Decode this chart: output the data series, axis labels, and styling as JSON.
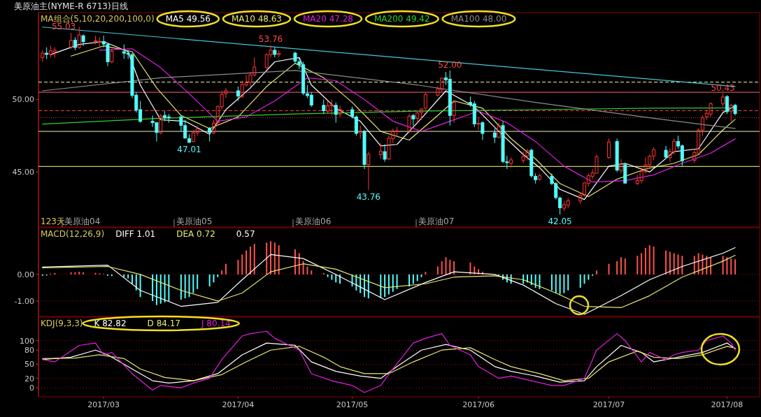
{
  "chart_data": [
    {
      "type": "candlestick",
      "title": "美原油主(NYME-R 6713)日线",
      "subtitle": "MA组合(5,10,20,200,100,0)",
      "legend": "top left",
      "tick_labels": "y",
      "xlim": [
        "2017-02-13",
        "2017-08-09"
      ],
      "ylim": [
        41.2,
        56
      ],
      "yticks": [
        {
          "value": 45,
          "label": "45.00"
        },
        {
          "value": 50,
          "label": "50.00"
        }
      ],
      "x": [
        "2017-02-14",
        "2017-02-15",
        "2017-02-16",
        "2017-02-17",
        "2017-02-21",
        "2017-02-22",
        "2017-02-23",
        "2017-02-24",
        "2017-02-27",
        "2017-02-28",
        "2017-03-01",
        "2017-03-02",
        "2017-03-03",
        "2017-03-06",
        "2017-03-07",
        "2017-03-08",
        "2017-03-09",
        "2017-03-10",
        "2017-03-13",
        "2017-03-14",
        "2017-03-15",
        "2017-03-16",
        "2017-03-17",
        "2017-03-20",
        "2017-03-21",
        "2017-03-22",
        "2017-03-23",
        "2017-03-24",
        "2017-03-27",
        "2017-03-28",
        "2017-03-29",
        "2017-03-30",
        "2017-03-31",
        "2017-04-03",
        "2017-04-04",
        "2017-04-05",
        "2017-04-06",
        "2017-04-07",
        "2017-04-10",
        "2017-04-11",
        "2017-04-12",
        "2017-04-13",
        "2017-04-17",
        "2017-04-18",
        "2017-04-19",
        "2017-04-20",
        "2017-04-21",
        "2017-04-24",
        "2017-04-25",
        "2017-04-26",
        "2017-04-27",
        "2017-04-28",
        "2017-05-01",
        "2017-05-02",
        "2017-05-03",
        "2017-05-04",
        "2017-05-05",
        "2017-05-08",
        "2017-05-09",
        "2017-05-10",
        "2017-05-11",
        "2017-05-12",
        "2017-05-15",
        "2017-05-16",
        "2017-05-17",
        "2017-05-18",
        "2017-05-19",
        "2017-05-22",
        "2017-05-23",
        "2017-05-24",
        "2017-05-25",
        "2017-05-26",
        "2017-05-30",
        "2017-05-31",
        "2017-06-01",
        "2017-06-02",
        "2017-06-05",
        "2017-06-06",
        "2017-06-07",
        "2017-06-08",
        "2017-06-09",
        "2017-06-12",
        "2017-06-13",
        "2017-06-14",
        "2017-06-15",
        "2017-06-16",
        "2017-06-19",
        "2017-06-20",
        "2017-06-21",
        "2017-06-22",
        "2017-06-23",
        "2017-06-26",
        "2017-06-27",
        "2017-06-28",
        "2017-06-29",
        "2017-06-30",
        "2017-07-03",
        "2017-07-05",
        "2017-07-06",
        "2017-07-07",
        "2017-07-10",
        "2017-07-11",
        "2017-07-12",
        "2017-07-13",
        "2017-07-14",
        "2017-07-17",
        "2017-07-18",
        "2017-07-19",
        "2017-07-20",
        "2017-07-21",
        "2017-07-24",
        "2017-07-25",
        "2017-07-26",
        "2017-07-27",
        "2017-07-28",
        "2017-07-31",
        "2017-08-01",
        "2017-08-02",
        "2017-08-03"
      ],
      "ohlc": [
        [
          52.9,
          53.4,
          52.6,
          53.2
        ],
        [
          53.2,
          53.6,
          52.8,
          53.11
        ],
        [
          53.1,
          53.7,
          52.9,
          53.36
        ],
        [
          53.3,
          53.6,
          52.9,
          53.4
        ],
        [
          53.6,
          54.6,
          53.5,
          54.06
        ],
        [
          54.1,
          54.3,
          53.4,
          53.59
        ],
        [
          53.6,
          55.03,
          53.5,
          54.45
        ],
        [
          54.4,
          54.5,
          53.7,
          53.99
        ],
        [
          54.0,
          54.4,
          53.8,
          54.05
        ],
        [
          54.0,
          54.3,
          53.6,
          54.01
        ],
        [
          54.0,
          54.4,
          53.6,
          53.83
        ],
        [
          53.8,
          53.9,
          52.3,
          52.61
        ],
        [
          52.6,
          53.5,
          52.5,
          53.33
        ],
        [
          53.3,
          53.8,
          52.8,
          53.2
        ],
        [
          53.2,
          53.4,
          52.8,
          53.14
        ],
        [
          53.1,
          53.2,
          50.1,
          50.28
        ],
        [
          50.3,
          50.5,
          49.1,
          49.28
        ],
        [
          49.3,
          49.9,
          48.4,
          48.49
        ],
        [
          48.5,
          48.9,
          48.1,
          48.4
        ],
        [
          48.4,
          48.4,
          47.1,
          47.72
        ],
        [
          47.7,
          49.0,
          47.6,
          48.86
        ],
        [
          48.9,
          49.2,
          48.5,
          48.75
        ],
        [
          48.8,
          49.0,
          48.4,
          48.78
        ],
        [
          48.8,
          48.9,
          47.8,
          48.22
        ],
        [
          48.2,
          48.6,
          47.3,
          47.34
        ],
        [
          47.3,
          47.6,
          47.01,
          47.04
        ],
        [
          47.1,
          47.9,
          47.05,
          47.7
        ],
        [
          47.7,
          48.2,
          47.5,
          47.97
        ],
        [
          48.0,
          48.1,
          47.1,
          47.73
        ],
        [
          47.7,
          48.6,
          47.6,
          48.37
        ],
        [
          48.4,
          49.6,
          48.2,
          49.51
        ],
        [
          49.5,
          50.6,
          49.3,
          50.35
        ],
        [
          50.4,
          50.8,
          50.1,
          50.6
        ],
        [
          50.6,
          50.9,
          49.9,
          50.24
        ],
        [
          50.2,
          51.3,
          50.1,
          51.03
        ],
        [
          51.0,
          51.7,
          50.9,
          51.15
        ],
        [
          51.2,
          51.9,
          50.9,
          51.7
        ],
        [
          51.7,
          52.9,
          51.6,
          52.24
        ],
        [
          52.2,
          53.2,
          52.1,
          53.08
        ],
        [
          53.1,
          53.76,
          52.9,
          53.4
        ],
        [
          53.4,
          53.6,
          52.9,
          53.11
        ],
        [
          53.1,
          53.4,
          52.9,
          53.18
        ],
        [
          53.2,
          53.3,
          52.5,
          52.65
        ],
        [
          52.6,
          52.9,
          52.1,
          52.41
        ],
        [
          52.4,
          52.6,
          50.3,
          50.44
        ],
        [
          50.4,
          51.0,
          50.1,
          50.27
        ],
        [
          50.3,
          50.5,
          49.5,
          49.62
        ],
        [
          49.6,
          50.0,
          49.0,
          49.23
        ],
        [
          49.2,
          49.9,
          49.0,
          49.56
        ],
        [
          49.6,
          50.0,
          48.9,
          49.62
        ],
        [
          49.6,
          49.8,
          48.4,
          48.97
        ],
        [
          49.0,
          49.6,
          48.8,
          49.33
        ],
        [
          49.3,
          49.5,
          48.7,
          48.84
        ],
        [
          48.8,
          48.9,
          47.5,
          47.66
        ],
        [
          47.7,
          48.2,
          47.3,
          47.82
        ],
        [
          47.8,
          47.9,
          45.2,
          45.52
        ],
        [
          45.5,
          46.4,
          43.76,
          46.22
        ],
        [
          46.2,
          47.0,
          45.9,
          46.43
        ],
        [
          46.4,
          46.9,
          45.7,
          45.88
        ],
        [
          45.9,
          47.5,
          45.8,
          47.33
        ],
        [
          47.3,
          48.0,
          47.0,
          47.83
        ],
        [
          47.8,
          48.1,
          47.5,
          47.84
        ],
        [
          47.8,
          49.0,
          47.7,
          48.85
        ],
        [
          48.9,
          49.0,
          48.2,
          48.66
        ],
        [
          48.7,
          49.2,
          48.4,
          49.07
        ],
        [
          49.1,
          49.4,
          48.6,
          49.35
        ],
        [
          49.4,
          50.5,
          49.3,
          50.33
        ],
        [
          50.3,
          50.9,
          50.2,
          50.73
        ],
        [
          50.7,
          51.5,
          50.5,
          51.47
        ],
        [
          51.5,
          51.9,
          51.0,
          51.36
        ],
        [
          51.4,
          52.0,
          48.2,
          48.9
        ],
        [
          48.9,
          49.9,
          48.4,
          49.8
        ],
        [
          49.8,
          50.2,
          49.5,
          49.66
        ],
        [
          49.7,
          49.9,
          48.1,
          48.32
        ],
        [
          48.3,
          48.8,
          47.9,
          48.36
        ],
        [
          48.4,
          48.5,
          47.2,
          47.66
        ],
        [
          47.7,
          48.0,
          47.0,
          47.4
        ],
        [
          47.4,
          48.4,
          47.3,
          48.19
        ],
        [
          48.2,
          48.5,
          45.6,
          45.72
        ],
        [
          45.7,
          46.1,
          45.2,
          45.64
        ],
        [
          45.6,
          46.0,
          45.3,
          45.83
        ],
        [
          45.8,
          46.4,
          45.6,
          46.08
        ],
        [
          46.1,
          46.6,
          45.8,
          46.46
        ],
        [
          46.5,
          46.6,
          44.6,
          44.73
        ],
        [
          44.7,
          44.9,
          44.2,
          44.46
        ],
        [
          44.5,
          44.9,
          44.4,
          44.74
        ],
        [
          44.7,
          44.9,
          44.1,
          44.2
        ],
        [
          44.2,
          44.3,
          43.1,
          43.23
        ],
        [
          43.2,
          43.3,
          42.05,
          42.53
        ],
        [
          42.5,
          43.0,
          42.3,
          42.74
        ],
        [
          42.7,
          43.2,
          42.5,
          43.01
        ],
        [
          43.0,
          43.6,
          42.8,
          43.38
        ],
        [
          43.4,
          44.3,
          43.3,
          44.24
        ],
        [
          44.2,
          44.9,
          44.0,
          44.74
        ],
        [
          44.7,
          45.2,
          44.5,
          44.93
        ],
        [
          44.9,
          46.2,
          44.9,
          46.04
        ],
        [
          46.0,
          47.3,
          45.9,
          47.07
        ],
        [
          47.1,
          47.3,
          45.0,
          45.13
        ],
        [
          45.1,
          45.9,
          44.9,
          45.52
        ],
        [
          45.5,
          45.6,
          44.2,
          44.23
        ],
        [
          44.2,
          44.8,
          44.1,
          44.4
        ],
        [
          44.4,
          45.3,
          44.2,
          45.04
        ],
        [
          45.0,
          46.0,
          44.9,
          45.49
        ],
        [
          45.5,
          46.2,
          45.3,
          46.08
        ],
        [
          46.1,
          46.7,
          45.8,
          46.54
        ],
        [
          46.5,
          46.8,
          45.9,
          46.02
        ],
        [
          46.0,
          46.6,
          45.7,
          46.4
        ],
        [
          46.4,
          47.3,
          46.2,
          47.12
        ],
        [
          47.1,
          47.5,
          46.6,
          46.79
        ],
        [
          46.8,
          46.9,
          45.4,
          45.77
        ],
        [
          45.8,
          46.5,
          45.6,
          46.34
        ],
        [
          46.3,
          48.0,
          46.2,
          47.89
        ],
        [
          47.9,
          48.9,
          47.5,
          48.75
        ],
        [
          48.8,
          49.3,
          48.6,
          49.04
        ],
        [
          49.0,
          49.8,
          48.8,
          49.71
        ],
        [
          49.7,
          50.43,
          49.5,
          50.17
        ],
        [
          50.2,
          50.3,
          49.0,
          49.16
        ],
        [
          49.2,
          49.7,
          48.5,
          49.59
        ],
        [
          49.6,
          49.7,
          48.9,
          49.03
        ]
      ],
      "colors": [
        "#ff3232",
        "#54fcfc",
        "#ff3232",
        "#ff3232",
        "#ff3232",
        "#54fcfc",
        "#ff3232",
        "#54fcfc",
        "#ff3232",
        "#ff3232",
        "#54fcfc",
        "#54fcfc",
        "#ff3232",
        "#54fcfc",
        "#54fcfc",
        "#54fcfc",
        "#54fcfc",
        "#54fcfc",
        "#54fcfc",
        "#54fcfc",
        "#ff3232",
        "#54fcfc",
        "#54fcfc",
        "#54fcfc",
        "#54fcfc",
        "#54fcfc",
        "#ff3232",
        "#ff3232",
        "#54fcfc",
        "#ff3232",
        "#ff3232",
        "#ff3232",
        "#ff3232",
        "#54fcfc",
        "#ff3232",
        "#ff3232",
        "#ff3232",
        "#ff3232",
        "#ff3232",
        "#ff3232",
        "#54fcfc",
        "#ff3232",
        "#54fcfc",
        "#54fcfc",
        "#54fcfc",
        "#54fcfc",
        "#54fcfc",
        "#54fcfc",
        "#ff3232",
        "#ff3232",
        "#54fcfc",
        "#ff3232",
        "#54fcfc",
        "#54fcfc",
        "#ff3232",
        "#54fcfc",
        "#ff3232",
        "#ff3232",
        "#54fcfc",
        "#ff3232",
        "#ff3232",
        "#ff3232",
        "#ff3232",
        "#54fcfc",
        "#ff3232",
        "#ff3232",
        "#ff3232",
        "#ff3232",
        "#ff3232",
        "#54fcfc",
        "#54fcfc",
        "#ff3232",
        "#54fcfc",
        "#54fcfc",
        "#ff3232",
        "#54fcfc",
        "#54fcfc",
        "#ff3232",
        "#54fcfc",
        "#54fcfc",
        "#ff3232",
        "#ff3232",
        "#ff3232",
        "#54fcfc",
        "#54fcfc",
        "#ff3232",
        "#54fcfc",
        "#54fcfc",
        "#54fcfc",
        "#ff3232",
        "#ff3232",
        "#ff3232",
        "#ff3232",
        "#ff3232",
        "#ff3232",
        "#ff3232",
        "#ff3232",
        "#54fcfc",
        "#ff3232",
        "#54fcfc",
        "#ff3232",
        "#ff3232",
        "#ff3232",
        "#ff3232",
        "#ff3232",
        "#54fcfc",
        "#ff3232",
        "#ff3232",
        "#54fcfc",
        "#54fcfc",
        "#ff3232",
        "#ff3232",
        "#ff3232",
        "#ff3232",
        "#ff3232",
        "#ff3232",
        "#54fcfc",
        "#ff3232",
        "#54fcfc"
      ],
      "series": [
        {
          "type": "line",
          "name": "MA5 49.56",
          "color": "#ffffff",
          "x": [
            "2017-02-16",
            "2017-02-23",
            "2017-03-01",
            "2017-03-07",
            "2017-03-10",
            "2017-03-15",
            "2017-03-21",
            "2017-03-27",
            "2017-03-31",
            "2017-04-06",
            "2017-04-12",
            "2017-04-18",
            "2017-04-21",
            "2017-04-27",
            "2017-05-03",
            "2017-05-08",
            "2017-05-12",
            "2017-05-18",
            "2017-05-24",
            "2017-05-31",
            "2017-06-06",
            "2017-06-12",
            "2017-06-16",
            "2017-06-21",
            "2017-06-27",
            "2017-07-03",
            "2017-07-07",
            "2017-07-13",
            "2017-07-19",
            "2017-07-25",
            "2017-07-31",
            "2017-08-03"
          ],
          "values": [
            53.1,
            53.8,
            54.0,
            53.3,
            51.0,
            48.6,
            48.5,
            47.6,
            49.3,
            50.8,
            52.6,
            52.9,
            51.0,
            49.4,
            48.5,
            46.8,
            46.9,
            48.7,
            50.6,
            49.5,
            47.8,
            46.2,
            45.3,
            43.8,
            43.1,
            45.4,
            45.6,
            45.0,
            46.4,
            46.6,
            49.1,
            49.56
          ]
        },
        {
          "type": "line",
          "name": "MA10 48.63",
          "color": "#e8e870",
          "x": [
            "2017-02-21",
            "2017-03-01",
            "2017-03-08",
            "2017-03-14",
            "2017-03-20",
            "2017-03-27",
            "2017-04-03",
            "2017-04-10",
            "2017-04-17",
            "2017-04-24",
            "2017-05-01",
            "2017-05-08",
            "2017-05-15",
            "2017-05-22",
            "2017-05-26",
            "2017-06-02",
            "2017-06-09",
            "2017-06-15",
            "2017-06-21",
            "2017-06-28",
            "2017-07-05",
            "2017-07-12",
            "2017-07-19",
            "2017-07-25",
            "2017-07-31",
            "2017-08-03"
          ],
          "values": [
            53.0,
            53.7,
            53.3,
            50.8,
            48.9,
            48.0,
            48.8,
            50.9,
            52.5,
            51.5,
            49.8,
            47.8,
            47.2,
            48.9,
            49.9,
            49.4,
            47.3,
            45.9,
            44.2,
            43.3,
            44.5,
            45.2,
            45.6,
            46.2,
            47.9,
            48.63
          ]
        },
        {
          "type": "line",
          "name": "MA20 47.28",
          "color": "#e020e0",
          "x": [
            "2017-02-28",
            "2017-03-08",
            "2017-03-15",
            "2017-03-22",
            "2017-03-29",
            "2017-04-05",
            "2017-04-12",
            "2017-04-20",
            "2017-04-27",
            "2017-05-04",
            "2017-05-11",
            "2017-05-18",
            "2017-05-25",
            "2017-06-01",
            "2017-06-08",
            "2017-06-15",
            "2017-06-22",
            "2017-06-29",
            "2017-07-07",
            "2017-07-14",
            "2017-07-21",
            "2017-07-28",
            "2017-08-03"
          ],
          "values": [
            53.4,
            53.5,
            52.2,
            50.4,
            48.5,
            48.8,
            49.9,
            51.5,
            51.3,
            50.0,
            48.5,
            47.8,
            48.5,
            49.2,
            48.4,
            47.1,
            45.4,
            44.3,
            44.4,
            44.8,
            45.6,
            46.3,
            47.28
          ]
        },
        {
          "type": "line",
          "name": "MA200 49.42",
          "color": "#30d030",
          "x": [
            "2017-02-14",
            "2017-03-15",
            "2017-04-17",
            "2017-05-17",
            "2017-06-15",
            "2017-07-14",
            "2017-08-03"
          ],
          "values": [
            48.3,
            48.7,
            49.0,
            49.2,
            49.3,
            49.4,
            49.42
          ]
        },
        {
          "type": "line",
          "name": "MA100 48.00",
          "color": "#8c8c8c",
          "x": [
            "2017-02-14",
            "2017-03-15",
            "2017-04-17",
            "2017-05-17",
            "2017-06-15",
            "2017-07-14",
            "2017-08-03"
          ],
          "values": [
            50.6,
            51.5,
            52.0,
            51.0,
            49.8,
            48.7,
            48.0
          ]
        },
        {
          "type": "line",
          "color": "#40c8d8",
          "x": [
            "2017-02-14",
            "2017-08-03"
          ],
          "values": [
            55.0,
            50.9
          ]
        }
      ],
      "ref_lines": [
        {
          "axis": "y",
          "value": 51.2,
          "color": "#f0f0a0",
          "line_style": "dashed"
        },
        {
          "axis": "y",
          "value": 50.5,
          "color": "#ff6080",
          "line_style": "solid"
        },
        {
          "axis": "y",
          "value": 49.23,
          "color": "#ff4040",
          "line_style": "dashed"
        },
        {
          "axis": "y",
          "value": 48.75,
          "color": "#c03030",
          "line_style": "dotted"
        },
        {
          "axis": "y",
          "value": 47.8,
          "color": "#f0f0b0",
          "line_style": "solid"
        },
        {
          "axis": "y",
          "value": 45.38,
          "color": "#ffff80",
          "line_style": "solid"
        }
      ],
      "annotations": [
        "123天",
        {
          "text": "55.03",
          "x": "2017-02-23",
          "y": 55.03
        },
        {
          "text": "53.76",
          "x": "2017-04-11",
          "y": 53.76
        },
        {
          "text": "47.01",
          "x": "2017-03-22",
          "y": 47.01
        },
        {
          "text": "43.76",
          "x": "2017-05-05",
          "y": 43.76
        },
        {
          "text": "52.00",
          "x": "2017-05-25",
          "y": 52.0
        },
        {
          "text": "42.05",
          "x": "2017-06-21",
          "y": 42.05
        },
        {
          "text": "50.43",
          "x": "2017-07-31",
          "y": 50.43
        },
        "美原油04",
        "美原油05",
        "美原油06",
        "美原油07"
      ]
    },
    {
      "type": "bar",
      "title": "MACD(12,26,9)",
      "legend": "top left",
      "tick_labels": "y",
      "grid": "y",
      "annotations": [
        "0.57"
      ],
      "xlim": [
        "2017-02-13",
        "2017-08-09"
      ],
      "ylim": [
        -1.58,
        1.76
      ],
      "yticks": [
        {
          "value": 0,
          "label": "0.00"
        },
        {
          "value": -1,
          "label": "-1.00"
        }
      ],
      "x": [
        "2017-02-14",
        "2017-02-15",
        "2017-02-16",
        "2017-02-17",
        "2017-02-21",
        "2017-02-22",
        "2017-02-23",
        "2017-02-24",
        "2017-02-27",
        "2017-02-28",
        "2017-03-01",
        "2017-03-02",
        "2017-03-03",
        "2017-03-06",
        "2017-03-07",
        "2017-03-08",
        "2017-03-09",
        "2017-03-10",
        "2017-03-13",
        "2017-03-14",
        "2017-03-15",
        "2017-03-16",
        "2017-03-17",
        "2017-03-20",
        "2017-03-21",
        "2017-03-22",
        "2017-03-23",
        "2017-03-24",
        "2017-03-27",
        "2017-03-28",
        "2017-03-29",
        "2017-03-30",
        "2017-03-31",
        "2017-04-03",
        "2017-04-04",
        "2017-04-05",
        "2017-04-06",
        "2017-04-07",
        "2017-04-10",
        "2017-04-11",
        "2017-04-12",
        "2017-04-13",
        "2017-04-17",
        "2017-04-18",
        "2017-04-19",
        "2017-04-20",
        "2017-04-21",
        "2017-04-24",
        "2017-04-25",
        "2017-04-26",
        "2017-04-27",
        "2017-04-28",
        "2017-05-01",
        "2017-05-02",
        "2017-05-03",
        "2017-05-04",
        "2017-05-05",
        "2017-05-08",
        "2017-05-09",
        "2017-05-10",
        "2017-05-11",
        "2017-05-12",
        "2017-05-15",
        "2017-05-16",
        "2017-05-17",
        "2017-05-18",
        "2017-05-19",
        "2017-05-22",
        "2017-05-23",
        "2017-05-24",
        "2017-05-25",
        "2017-05-26",
        "2017-05-30",
        "2017-05-31",
        "2017-06-01",
        "2017-06-02",
        "2017-06-05",
        "2017-06-06",
        "2017-06-07",
        "2017-06-08",
        "2017-06-09",
        "2017-06-12",
        "2017-06-13",
        "2017-06-14",
        "2017-06-15",
        "2017-06-16",
        "2017-06-19",
        "2017-06-20",
        "2017-06-21",
        "2017-06-22",
        "2017-06-23",
        "2017-06-26",
        "2017-06-27",
        "2017-06-28",
        "2017-06-29",
        "2017-06-30",
        "2017-07-03",
        "2017-07-05",
        "2017-07-06",
        "2017-07-07",
        "2017-07-10",
        "2017-07-11",
        "2017-07-12",
        "2017-07-13",
        "2017-07-14",
        "2017-07-17",
        "2017-07-18",
        "2017-07-19",
        "2017-07-20",
        "2017-07-21",
        "2017-07-24",
        "2017-07-25",
        "2017-07-26",
        "2017-07-27",
        "2017-07-28",
        "2017-07-31",
        "2017-08-01",
        "2017-08-02",
        "2017-08-03"
      ],
      "series": [
        {
          "type": "line",
          "name": "DIFF 1.01",
          "color": "#ffffff",
          "x": [
            "2017-02-14",
            "2017-03-02",
            "2017-03-10",
            "2017-03-20",
            "2017-03-29",
            "2017-04-04",
            "2017-04-11",
            "2017-04-19",
            "2017-04-27",
            "2017-05-09",
            "2017-05-19",
            "2017-05-26",
            "2017-06-05",
            "2017-06-12",
            "2017-06-20",
            "2017-06-27",
            "2017-07-06",
            "2017-07-13",
            "2017-07-21",
            "2017-07-31",
            "2017-08-03"
          ],
          "values": [
            0.28,
            0.35,
            -0.6,
            -1.2,
            -1.05,
            -0.2,
            0.75,
            0.6,
            0.0,
            -0.95,
            -0.3,
            0.1,
            0.0,
            -0.4,
            -1.1,
            -1.5,
            -0.8,
            -0.2,
            0.3,
            0.8,
            1.01
          ]
        },
        {
          "type": "line",
          "name": "DEA 0.72",
          "color": "#e8e870",
          "x": [
            "2017-02-14",
            "2017-03-02",
            "2017-03-10",
            "2017-03-20",
            "2017-03-29",
            "2017-04-04",
            "2017-04-11",
            "2017-04-19",
            "2017-04-27",
            "2017-05-09",
            "2017-05-19",
            "2017-05-26",
            "2017-06-05",
            "2017-06-12",
            "2017-06-20",
            "2017-06-27",
            "2017-07-06",
            "2017-07-13",
            "2017-07-21",
            "2017-07-31",
            "2017-08-03"
          ],
          "values": [
            0.25,
            0.3,
            0.0,
            -0.6,
            -1.0,
            -0.7,
            0.1,
            0.4,
            0.2,
            -0.5,
            -0.35,
            -0.1,
            -0.05,
            -0.2,
            -0.7,
            -1.2,
            -1.25,
            -0.8,
            -0.1,
            0.5,
            0.72
          ]
        },
        {
          "type": "bar",
          "values": [
            -0.05,
            -0.04,
            0.03,
            0.05,
            0.08,
            0.08,
            0.1,
            0.08,
            0.06,
            0.04,
            0.02,
            -0.05,
            -0.06,
            -0.1,
            -0.15,
            -0.35,
            -0.6,
            -0.85,
            -1.0,
            -1.15,
            -1.1,
            -1.05,
            -1.0,
            -0.95,
            -0.9,
            -0.85,
            -0.7,
            -0.55,
            -0.45,
            -0.3,
            -0.1,
            0.15,
            0.4,
            0.55,
            0.75,
            0.9,
            1.05,
            1.15,
            1.2,
            1.25,
            1.2,
            1.1,
            0.95,
            0.8,
            0.5,
            0.3,
            0.15,
            0.05,
            -0.1,
            -0.2,
            -0.3,
            -0.35,
            -0.45,
            -0.6,
            -0.7,
            -0.85,
            -0.9,
            -0.88,
            -0.85,
            -0.75,
            -0.65,
            -0.55,
            -0.45,
            -0.35,
            -0.25,
            -0.1,
            0.1,
            0.3,
            0.5,
            0.65,
            0.55,
            0.5,
            0.45,
            0.3,
            0.2,
            0.1,
            null,
            -0.05,
            -0.2,
            -0.3,
            -0.35,
            -0.35,
            -0.3,
            -0.4,
            -0.5,
            -0.55,
            -0.6,
            -0.7,
            -0.75,
            -0.7,
            -0.6,
            -0.5,
            -0.35,
            -0.2,
            -0.05,
            0.15,
            0.4,
            0.5,
            0.65,
            0.6,
            0.7,
            0.8,
            1.0,
            1.1,
            1.05,
            0.9,
            0.85,
            0.8,
            0.75,
            0.7,
            0.7,
            0.8,
            0.75,
            0.7,
            0.65,
            0.7,
            0.65,
            0.6,
            0.57
          ],
          "colors": [
            "#54fcfc",
            "#54fcfc",
            "#ff5050",
            "#ff5050",
            "#ff5050",
            "#ff5050",
            "#ff5050",
            "#ff5050",
            "#ff5050",
            "#ff5050",
            "#ff5050",
            "#54fcfc",
            "#54fcfc",
            "#54fcfc",
            "#54fcfc",
            "#54fcfc",
            "#54fcfc",
            "#54fcfc",
            "#54fcfc",
            "#54fcfc",
            "#54fcfc",
            "#54fcfc",
            "#54fcfc",
            "#54fcfc",
            "#54fcfc",
            "#54fcfc",
            "#54fcfc",
            "#54fcfc",
            "#54fcfc",
            "#54fcfc",
            "#54fcfc",
            "#ff5050",
            "#ff5050",
            "#ff5050",
            "#ff5050",
            "#ff5050",
            "#ff5050",
            "#ff5050",
            "#ff5050",
            "#ff5050",
            "#ff5050",
            "#ff5050",
            "#ff5050",
            "#ff5050",
            "#ff5050",
            "#ff5050",
            "#ff5050",
            "#ff5050",
            "#54fcfc",
            "#54fcfc",
            "#54fcfc",
            "#54fcfc",
            "#54fcfc",
            "#54fcfc",
            "#54fcfc",
            "#54fcfc",
            "#54fcfc",
            "#54fcfc",
            "#54fcfc",
            "#54fcfc",
            "#54fcfc",
            "#54fcfc",
            "#54fcfc",
            "#54fcfc",
            "#54fcfc",
            "#54fcfc",
            "#ff5050",
            "#ff5050",
            "#ff5050",
            "#ff5050",
            "#ff5050",
            "#ff5050",
            "#ff5050",
            "#ff5050",
            "#ff5050",
            "#ff5050",
            null,
            "#54fcfc",
            "#54fcfc",
            "#54fcfc",
            "#54fcfc",
            "#54fcfc",
            "#54fcfc",
            "#54fcfc",
            "#54fcfc",
            "#54fcfc",
            "#54fcfc",
            "#54fcfc",
            "#54fcfc",
            "#54fcfc",
            "#54fcfc",
            "#54fcfc",
            "#54fcfc",
            "#54fcfc",
            "#54fcfc",
            "#ff5050",
            "#ff5050",
            "#ff5050",
            "#ff5050",
            "#ff5050",
            "#ff5050",
            "#ff5050",
            "#ff5050",
            "#ff5050",
            "#ff5050",
            "#ff5050",
            "#ff5050",
            "#ff5050",
            "#ff5050",
            "#ff5050",
            "#ff5050",
            "#ff5050",
            "#ff5050",
            "#ff5050",
            "#ff5050",
            "#ff5050",
            "#ff5050",
            "#ff5050",
            "#ff5050"
          ]
        }
      ]
    },
    {
      "type": "line",
      "title": "KDJ(9,3,3)",
      "legend": "top left",
      "grid": "y",
      "xlim": [
        "2017-02-13",
        "2017-08-09"
      ],
      "xticks": [
        {
          "value": "2017-03-01",
          "label": "2017/03"
        },
        {
          "value": "2017-04-03",
          "label": "2017/04"
        },
        {
          "value": "2017-05-01",
          "label": "2017/05"
        },
        {
          "value": "2017-06-01",
          "label": "2017/06"
        },
        {
          "value": "2017-07-03",
          "label": "2017/07"
        },
        {
          "value": "2017-08-01",
          "label": "2017/08"
        }
      ],
      "ylim": [
        -19,
        150
      ],
      "yticks": [
        0,
        20,
        50,
        80,
        100
      ],
      "series": [
        {
          "name": "K 82.82",
          "color": "#ffffff",
          "x": [
            "2017-02-14",
            "2017-02-21",
            "2017-02-27",
            "2017-03-02",
            "2017-03-08",
            "2017-03-13",
            "2017-03-17",
            "2017-03-23",
            "2017-03-29",
            "2017-04-04",
            "2017-04-10",
            "2017-04-17",
            "2017-04-21",
            "2017-04-27",
            "2017-05-03",
            "2017-05-08",
            "2017-05-12",
            "2017-05-18",
            "2017-05-24",
            "2017-05-30",
            "2017-06-05",
            "2017-06-09",
            "2017-06-15",
            "2017-06-21",
            "2017-06-27",
            "2017-06-30",
            "2017-07-06",
            "2017-07-11",
            "2017-07-14",
            "2017-07-20",
            "2017-07-26",
            "2017-08-01",
            "2017-08-03"
          ],
          "values": [
            60,
            65,
            80,
            70,
            40,
            15,
            10,
            15,
            30,
            70,
            95,
            90,
            55,
            35,
            25,
            20,
            45,
            80,
            92,
            80,
            45,
            35,
            25,
            12,
            15,
            45,
            90,
            75,
            55,
            65,
            75,
            95,
            82.82
          ]
        },
        {
          "name": "D 84.17",
          "color": "#e8e870",
          "x": [
            "2017-02-14",
            "2017-02-22",
            "2017-02-28",
            "2017-03-06",
            "2017-03-10",
            "2017-03-16",
            "2017-03-23",
            "2017-03-30",
            "2017-04-05",
            "2017-04-11",
            "2017-04-18",
            "2017-04-24",
            "2017-04-28",
            "2017-05-04",
            "2017-05-10",
            "2017-05-16",
            "2017-05-23",
            "2017-05-30",
            "2017-06-05",
            "2017-06-09",
            "2017-06-16",
            "2017-06-22",
            "2017-06-28",
            "2017-07-03",
            "2017-07-10",
            "2017-07-14",
            "2017-07-20",
            "2017-07-26",
            "2017-08-01",
            "2017-08-03"
          ],
          "values": [
            62,
            63,
            70,
            62,
            40,
            22,
            15,
            28,
            55,
            80,
            88,
            65,
            45,
            30,
            30,
            55,
            80,
            85,
            60,
            45,
            30,
            15,
            20,
            55,
            78,
            65,
            62,
            70,
            88,
            84.17
          ]
        },
        {
          "name": "J 80.14",
          "color": "#e020e0",
          "x": [
            "2017-02-14",
            "2017-02-17",
            "2017-02-23",
            "2017-02-27",
            "2017-03-01",
            "2017-03-03",
            "2017-03-08",
            "2017-03-13",
            "2017-03-15",
            "2017-03-20",
            "2017-03-23",
            "2017-03-27",
            "2017-03-30",
            "2017-04-04",
            "2017-04-06",
            "2017-04-10",
            "2017-04-12",
            "2017-04-18",
            "2017-04-21",
            "2017-04-26",
            "2017-05-01",
            "2017-05-04",
            "2017-05-08",
            "2017-05-11",
            "2017-05-16",
            "2017-05-19",
            "2017-05-23",
            "2017-05-25",
            "2017-05-30",
            "2017-06-01",
            "2017-06-06",
            "2017-06-09",
            "2017-06-14",
            "2017-06-19",
            "2017-06-22",
            "2017-06-27",
            "2017-06-30",
            "2017-07-05",
            "2017-07-07",
            "2017-07-11",
            "2017-07-13",
            "2017-07-17",
            "2017-07-19",
            "2017-07-21",
            "2017-07-25",
            "2017-07-27",
            "2017-07-31",
            "2017-08-02",
            "2017-08-03"
          ],
          "values": [
            60,
            55,
            90,
            95,
            70,
            75,
            30,
            -5,
            5,
            0,
            10,
            20,
            60,
            110,
            115,
            120,
            105,
            80,
            30,
            15,
            5,
            -10,
            5,
            40,
            95,
            105,
            115,
            90,
            70,
            45,
            20,
            25,
            15,
            5,
            5,
            20,
            80,
            115,
            100,
            55,
            75,
            60,
            70,
            75,
            80,
            100,
            110,
            95,
            80.14
          ]
        }
      ]
    }
  ]
}
